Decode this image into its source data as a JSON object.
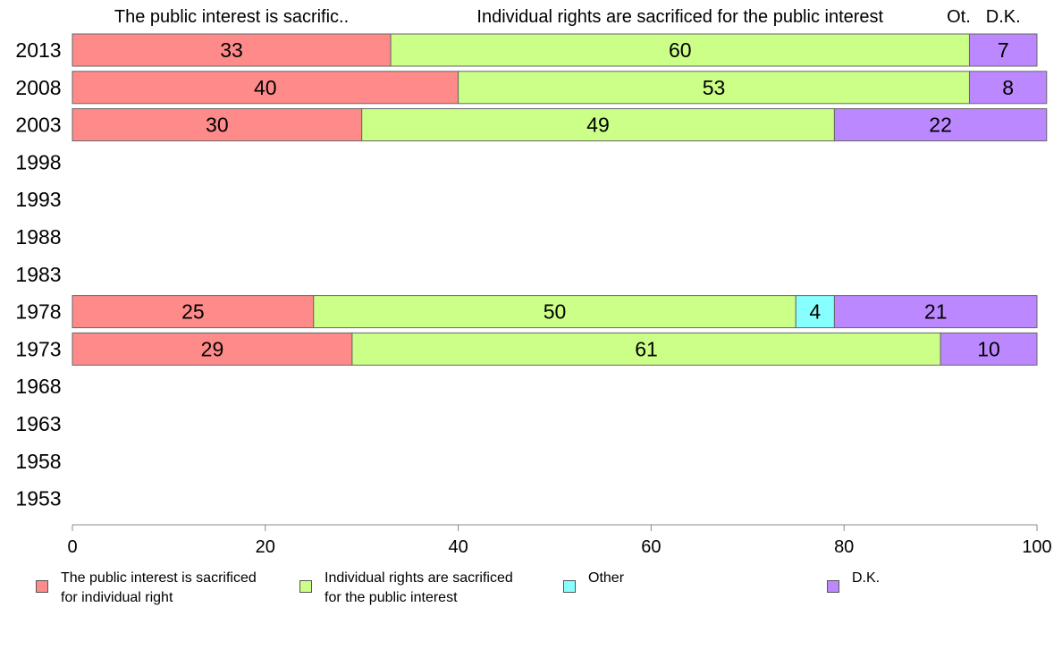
{
  "chart_data": {
    "type": "bar",
    "orientation": "horizontal",
    "stacked": true,
    "categories": [
      "2013",
      "2008",
      "2003",
      "1998",
      "1993",
      "1988",
      "1983",
      "1978",
      "1973",
      "1968",
      "1963",
      "1958",
      "1953"
    ],
    "series": [
      {
        "name": "The public interest is sacrificed for individual right",
        "short_label": "The public interest is sacrific..",
        "color": "#ff8a8a",
        "values": [
          33,
          40,
          30,
          null,
          null,
          null,
          null,
          25,
          29,
          null,
          null,
          null,
          null
        ]
      },
      {
        "name": "Individual rights are sacrificed for the public interest",
        "short_label": "Individual rights are sacrificed for the public interest",
        "color": "#ccff88",
        "values": [
          60,
          53,
          49,
          null,
          null,
          null,
          null,
          50,
          61,
          null,
          null,
          null,
          null
        ]
      },
      {
        "name": "Other",
        "short_label": "Ot.",
        "color": "#88ffff",
        "values": [
          0,
          0,
          0,
          null,
          null,
          null,
          null,
          4,
          0,
          null,
          null,
          null,
          null
        ]
      },
      {
        "name": "D.K.",
        "short_label": "D.K.",
        "color": "#bb88ff",
        "values": [
          7,
          8,
          22,
          null,
          null,
          null,
          null,
          21,
          10,
          null,
          null,
          null,
          null
        ]
      }
    ],
    "xlim": [
      0,
      100
    ],
    "xticks": [
      0,
      20,
      40,
      60,
      80,
      100
    ],
    "xlabel": "",
    "ylabel": "",
    "grid": false,
    "legend_position": "bottom"
  },
  "legend": [
    {
      "label": "The public interest is sacrificed\nfor individual right",
      "color": "#ff8a8a"
    },
    {
      "label": "Individual rights are sacrificed\nfor the public interest",
      "color": "#ccff88"
    },
    {
      "label": "Other",
      "color": "#88ffff"
    },
    {
      "label": "D.K.",
      "color": "#bb88ff"
    }
  ]
}
